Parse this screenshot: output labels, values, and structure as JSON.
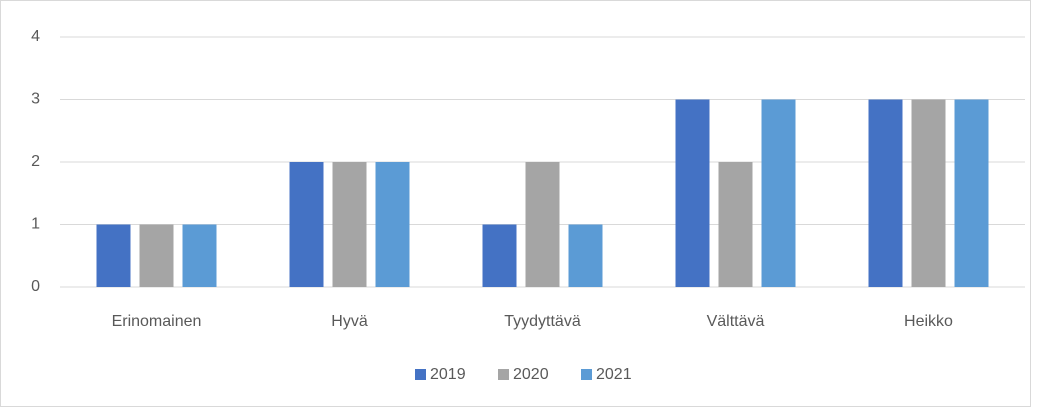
{
  "chart_data": {
    "type": "bar",
    "categories": [
      "Erinomainen",
      "Hyvä",
      "Tyydyttävä",
      "Välttävä",
      "Heikko"
    ],
    "series": [
      {
        "name": "2019",
        "color": "#4472c4",
        "values": [
          1,
          2,
          1,
          3,
          3
        ]
      },
      {
        "name": "2020",
        "color": "#a5a5a5",
        "values": [
          1,
          2,
          2,
          2,
          3
        ]
      },
      {
        "name": "2021",
        "color": "#5b9bd5",
        "values": [
          1,
          2,
          1,
          3,
          3
        ]
      }
    ],
    "ylim": [
      0,
      4
    ],
    "yticks": [
      0,
      1,
      2,
      3,
      4
    ],
    "grid": true,
    "legend": "bottom"
  }
}
